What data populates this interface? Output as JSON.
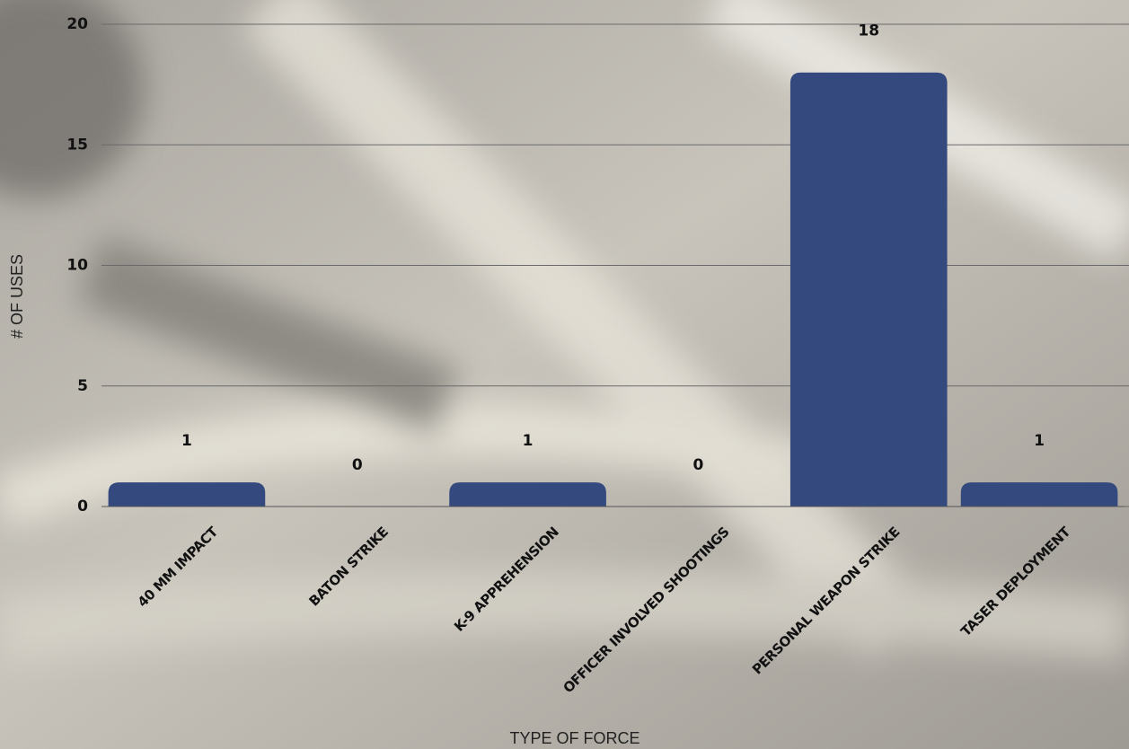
{
  "chart_data": {
    "type": "bar",
    "x_label": "TYPE OF FORCE",
    "y_label": "# OF USES",
    "categories": [
      "40 MM IMPACT",
      "BATON STRIKE",
      "K-9 APPREHENSION",
      "OFFICER INVOLVED SHOOTINGS",
      "PERSONAL WEAPON STRIKE",
      "TASER DEPLOYMENT"
    ],
    "values": [
      1,
      0,
      1,
      0,
      18,
      1
    ],
    "color": "#344a7e",
    "ylim": [
      0,
      20
    ],
    "yticks": [
      0,
      5,
      10,
      15,
      20
    ],
    "grid": true
  }
}
